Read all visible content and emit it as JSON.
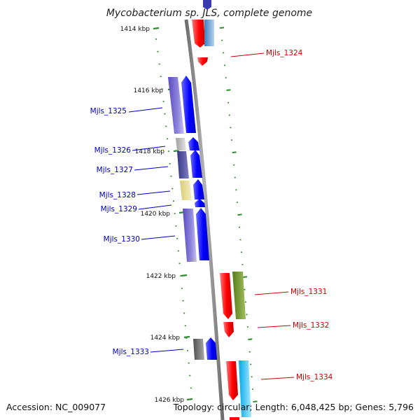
{
  "title": "Mycobacterium sp. JLS, complete genome",
  "footer": {
    "accession": "Accession: NC_009077",
    "summary": "Topology: circular; Length: 6,048,425 bp; Genes: 5,796"
  },
  "colors": {
    "backbone": "#8c8c8c",
    "tick": "#2e8b2e",
    "forward_label": "#0000c0",
    "reverse_label": "#d00000",
    "forward_arrow": "#0000ff",
    "reverse_arrow": "#ff0000"
  },
  "kbp_ticks": [
    "1414 kbp",
    "1416 kbp",
    "1418 kbp",
    "1420 kbp",
    "1422 kbp",
    "1424 kbp",
    "1426 kbp"
  ],
  "genes": [
    {
      "id": "Mjls_1324",
      "strand": "reverse",
      "cog_color": "#ff0000"
    },
    {
      "id": "Mjls_1325",
      "strand": "forward",
      "cog_color": "#6a5acd"
    },
    {
      "id": "Mjls_1326",
      "strand": "forward",
      "cog_color": "#b0b0b0"
    },
    {
      "id": "Mjls_1327",
      "strand": "forward",
      "cog_color": "#3c3c8c"
    },
    {
      "id": "Mjls_1328",
      "strand": "forward",
      "cog_color": "#e8dc8c"
    },
    {
      "id": "Mjls_1329",
      "strand": "forward",
      "cog_color": "#0000ff"
    },
    {
      "id": "Mjls_1330",
      "strand": "forward",
      "cog_color": "#6a5acd"
    },
    {
      "id": "Mjls_1331",
      "strand": "reverse",
      "cog_color": "#6b8e23"
    },
    {
      "id": "Mjls_1332",
      "strand": "reverse",
      "cog_color": "#ff0000"
    },
    {
      "id": "Mjls_1333",
      "strand": "forward",
      "cog_color": "#606060"
    },
    {
      "id": "Mjls_1334",
      "strand": "reverse",
      "cog_color": "#00bfff"
    }
  ]
}
